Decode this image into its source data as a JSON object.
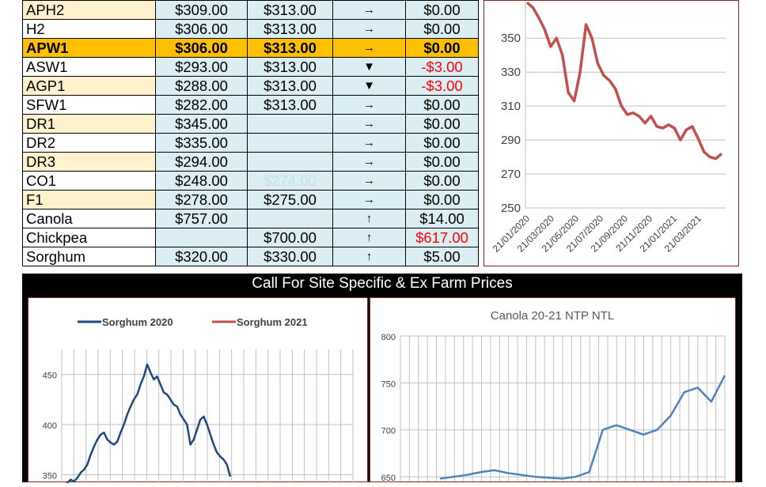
{
  "table": {
    "rows": [
      {
        "grade": "APH2",
        "price1": "$309.00",
        "price2": "$313.00",
        "trend": "→",
        "change": "$0.00",
        "label_bg": "yellow"
      },
      {
        "grade": "H2",
        "price1": "$306.00",
        "price2": "$313.00",
        "trend": "→",
        "change": "$0.00",
        "label_bg": "white"
      },
      {
        "grade": "APW1",
        "price1": "$306.00",
        "price2": "$313.00",
        "trend": "→",
        "change": "$0.00",
        "label_bg": "highlight"
      },
      {
        "grade": "ASW1",
        "price1": "$293.00",
        "price2": "$313.00",
        "trend": "▼",
        "change": "-$3.00",
        "label_bg": "white"
      },
      {
        "grade": "AGP1",
        "price1": "$288.00",
        "price2": "$313.00",
        "trend": "▼",
        "change": "-$3.00",
        "label_bg": "yellow"
      },
      {
        "grade": "SFW1",
        "price1": "$282.00",
        "price2": "$313.00",
        "trend": "→",
        "change": "$0.00",
        "label_bg": "white"
      },
      {
        "grade": "DR1",
        "price1": "$345.00",
        "price2": "",
        "trend": "→",
        "change": "$0.00",
        "label_bg": "yellow"
      },
      {
        "grade": "DR2",
        "price1": "$335.00",
        "price2": "",
        "trend": "→",
        "change": "$0.00",
        "label_bg": "white"
      },
      {
        "grade": "DR3",
        "price1": "$294.00",
        "price2": "",
        "trend": "→",
        "change": "$0.00",
        "label_bg": "yellow"
      },
      {
        "grade": "CO1",
        "price1": "$248.00",
        "price2": "$274.00",
        "trend": "→",
        "change": "$0.00",
        "label_bg": "white"
      },
      {
        "grade": "F1",
        "price1": "$278.00",
        "price2": "$275.00",
        "trend": "→",
        "change": "$0.00",
        "label_bg": "yellow"
      },
      {
        "grade": "Canola",
        "price1": "$757.00",
        "price2": "",
        "trend": "↑",
        "change": "$14.00",
        "label_bg": "white"
      },
      {
        "grade": "Chickpea",
        "price1": "",
        "price2": "$700.00",
        "trend": "↑",
        "change": "$617.00",
        "label_bg": "white"
      },
      {
        "grade": "Sorghum",
        "price1": "$320.00",
        "price2": "$330.00",
        "trend": "↑",
        "change": "$5.00",
        "label_bg": "white"
      }
    ]
  },
  "banner": {
    "text": "Call For Site Specific & Ex Farm Prices"
  },
  "colors": {
    "red_series": "#C0504D",
    "blue_series": "#1F497D",
    "canola_series": "#4F81BD",
    "highlight": "#FFC000",
    "cell_blue": "#DAEEF3",
    "label_yellow": "#FFF2CC",
    "negative": "#FF0000"
  },
  "chart_data": [
    {
      "type": "line",
      "title": "",
      "yticks": [
        "250",
        "270",
        "290",
        "310",
        "330",
        "350"
      ],
      "ylim": [
        250,
        372
      ],
      "xticks": [
        "21/01/2020",
        "21/03/2020",
        "21/05/2020",
        "21/07/2020",
        "21/09/2020",
        "21/11/2020",
        "21/01/2021",
        "21/03/2021"
      ],
      "grid": true,
      "series": [
        {
          "name": "",
          "x": [
            0,
            2,
            4,
            6,
            8,
            10,
            12,
            14,
            16,
            18,
            20,
            22,
            24,
            26,
            28,
            30,
            32,
            34,
            36,
            38,
            40,
            42,
            44,
            46,
            48,
            50,
            52,
            54,
            56,
            58,
            60,
            62,
            64,
            66
          ],
          "y": [
            371,
            368,
            362,
            355,
            345,
            350,
            340,
            318,
            313,
            330,
            358,
            350,
            335,
            328,
            325,
            320,
            310,
            305,
            306,
            304,
            300,
            304,
            298,
            297,
            299,
            297,
            290,
            296,
            298,
            291,
            283,
            280,
            279,
            282
          ]
        }
      ]
    },
    {
      "type": "line",
      "title": "",
      "yticks": [
        "350",
        "400",
        "450"
      ],
      "ylim": [
        340,
        475
      ],
      "grid": true,
      "legend": {
        "position": "top",
        "entries": [
          "Sorghum 2020",
          "Sorghum 2021"
        ]
      },
      "series": [
        {
          "name": "Sorghum 2020",
          "x": [
            0,
            1,
            2,
            3,
            4,
            5,
            6,
            7,
            8,
            9,
            10,
            11,
            12,
            13,
            14,
            15,
            16,
            17,
            18,
            19,
            20,
            21,
            22,
            23,
            24,
            25,
            26,
            27,
            28,
            29,
            30,
            31,
            32,
            33,
            34,
            35,
            36,
            37,
            38,
            39,
            40,
            41,
            42,
            43,
            44,
            45,
            46,
            47,
            48,
            49,
            50
          ],
          "y": [
            338,
            342,
            345,
            343,
            347,
            352,
            355,
            360,
            370,
            378,
            385,
            390,
            392,
            385,
            382,
            380,
            383,
            392,
            400,
            410,
            418,
            425,
            430,
            440,
            448,
            460,
            452,
            445,
            448,
            440,
            432,
            430,
            425,
            420,
            418,
            410,
            405,
            400,
            380,
            385,
            395,
            405,
            408,
            400,
            390,
            380,
            372,
            368,
            365,
            360,
            348
          ]
        },
        {
          "name": "Sorghum 2021",
          "x": [],
          "y": []
        }
      ]
    },
    {
      "type": "line",
      "title": "Canola 20-21 NTP NTL",
      "yticks": [
        "650",
        "700",
        "750",
        "800"
      ],
      "ylim": [
        645,
        800
      ],
      "grid": true,
      "series": [
        {
          "name": "",
          "x": [
            0,
            1,
            2,
            3,
            4,
            5,
            6,
            7,
            8,
            9,
            10,
            11,
            12,
            13,
            14,
            15,
            16,
            17,
            18,
            19,
            20,
            21
          ],
          "y": [
            648,
            650,
            652,
            655,
            657,
            654,
            652,
            650,
            649,
            648,
            650,
            655,
            700,
            705,
            700,
            695,
            700,
            715,
            740,
            745,
            730,
            758
          ]
        }
      ]
    }
  ]
}
